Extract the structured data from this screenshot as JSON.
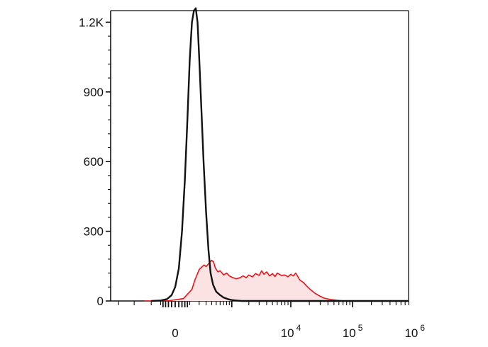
{
  "chart_data": {
    "type": "area",
    "title": "",
    "xlabel": "",
    "ylabel": "",
    "x_scale": "biexponential",
    "ylim": [
      0,
      1250
    ],
    "y_ticks": [
      {
        "value": 0,
        "label": "0"
      },
      {
        "value": 300,
        "label": "300"
      },
      {
        "value": 600,
        "label": "600"
      },
      {
        "value": 900,
        "label": "900"
      },
      {
        "value": 1200,
        "label": "1.2K"
      }
    ],
    "x_ticks": [
      {
        "value": 0,
        "label": "0",
        "exp": ""
      },
      {
        "value": 10000,
        "label": "10",
        "exp": "4"
      },
      {
        "value": 100000,
        "label": "10",
        "exp": "5"
      },
      {
        "value": 1000000,
        "label": "10",
        "exp": "6"
      }
    ],
    "grid": false,
    "legend": "none",
    "series": [
      {
        "color": "#111111",
        "fill": "none",
        "points": [
          [
            -200,
            0
          ],
          [
            -100,
            2
          ],
          [
            -50,
            8
          ],
          [
            -20,
            25
          ],
          [
            0,
            60
          ],
          [
            20,
            140
          ],
          [
            40,
            300
          ],
          [
            60,
            520
          ],
          [
            80,
            780
          ],
          [
            100,
            1040
          ],
          [
            120,
            1200
          ],
          [
            140,
            1250
          ],
          [
            160,
            1260
          ],
          [
            180,
            1200
          ],
          [
            200,
            1050
          ],
          [
            230,
            820
          ],
          [
            260,
            600
          ],
          [
            300,
            380
          ],
          [
            340,
            220
          ],
          [
            380,
            120
          ],
          [
            430,
            70
          ],
          [
            500,
            40
          ],
          [
            600,
            25
          ],
          [
            700,
            15
          ],
          [
            850,
            8
          ],
          [
            1000,
            4
          ],
          [
            1200,
            2
          ],
          [
            1500,
            0
          ],
          [
            2000,
            0
          ],
          [
            1000000,
            0
          ]
        ]
      },
      {
        "color": "#e8161b",
        "fill": "#fbe3e3",
        "points": [
          [
            -300,
            0
          ],
          [
            -50,
            0
          ],
          [
            50,
            10
          ],
          [
            120,
            50
          ],
          [
            150,
            90
          ],
          [
            200,
            135
          ],
          [
            240,
            148
          ],
          [
            270,
            155
          ],
          [
            300,
            148
          ],
          [
            340,
            160
          ],
          [
            400,
            175
          ],
          [
            440,
            168
          ],
          [
            480,
            142
          ],
          [
            540,
            125
          ],
          [
            600,
            130
          ],
          [
            700,
            112
          ],
          [
            800,
            120
          ],
          [
            900,
            108
          ],
          [
            1000,
            102
          ],
          [
            1200,
            95
          ],
          [
            1400,
            100
          ],
          [
            1600,
            108
          ],
          [
            1800,
            100
          ],
          [
            2000,
            112
          ],
          [
            2300,
            104
          ],
          [
            2600,
            118
          ],
          [
            3000,
            110
          ],
          [
            3300,
            130
          ],
          [
            3600,
            115
          ],
          [
            4000,
            125
          ],
          [
            4500,
            108
          ],
          [
            5000,
            118
          ],
          [
            5500,
            105
          ],
          [
            6000,
            120
          ],
          [
            7000,
            110
          ],
          [
            8000,
            112
          ],
          [
            9000,
            104
          ],
          [
            10000,
            115
          ],
          [
            11000,
            108
          ],
          [
            12000,
            120
          ],
          [
            13000,
            105
          ],
          [
            14000,
            90
          ],
          [
            16000,
            80
          ],
          [
            18000,
            65
          ],
          [
            21000,
            48
          ],
          [
            25000,
            32
          ],
          [
            30000,
            20
          ],
          [
            35000,
            12
          ],
          [
            45000,
            6
          ],
          [
            60000,
            2
          ],
          [
            70000,
            0
          ],
          [
            1000000,
            0
          ]
        ]
      }
    ]
  }
}
